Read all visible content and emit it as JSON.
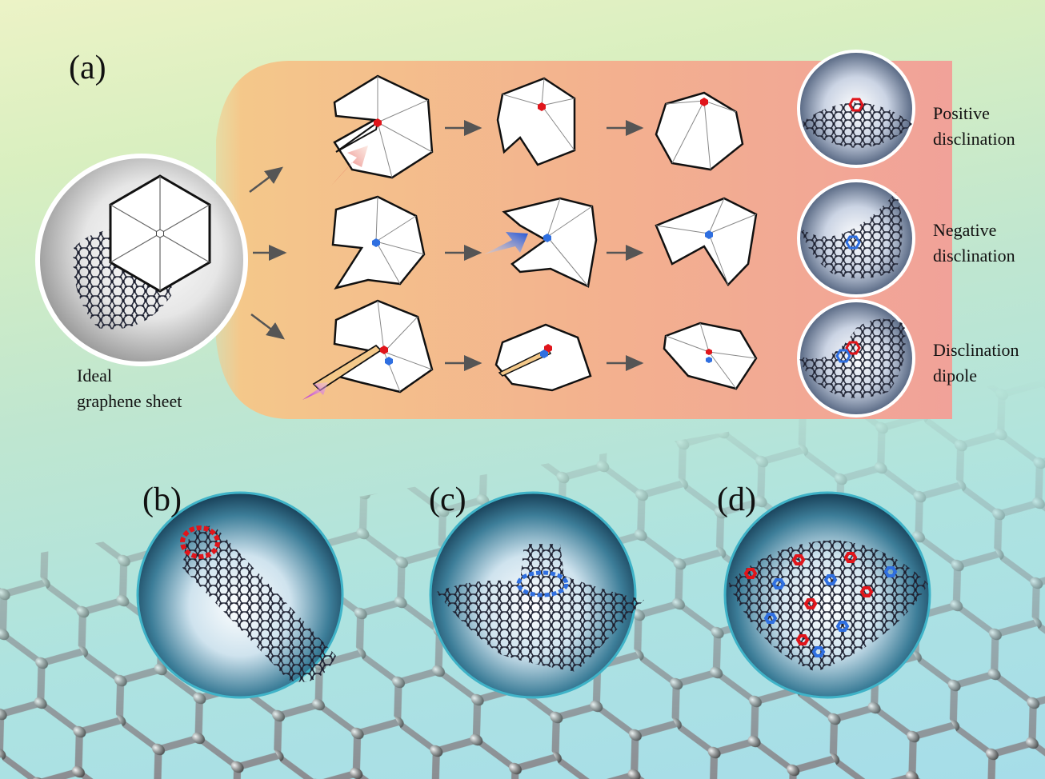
{
  "labels": {
    "panel_a": "(a)",
    "panel_b": "(b)",
    "panel_c": "(c)",
    "panel_d": "(d)"
  },
  "captions": {
    "ideal_line1": "Ideal",
    "ideal_line2": "graphene sheet",
    "positive_line1": "Positive",
    "positive_line2": "disclination",
    "negative_line1": "Negative",
    "negative_line2": "disclination",
    "dipole_line1": "Disclination",
    "dipole_line2": "dipole"
  },
  "icons": [
    "graphene-sheet-icon",
    "hexagon-paper-model-icon",
    "arrow-icon",
    "nanotube-icon",
    "cone-icon",
    "sphere-icon"
  ],
  "colors": {
    "positive_defect": "#e0151b",
    "negative_defect": "#2f6fe0",
    "atom": "#1b1e2e",
    "lattice": "#8d8f93",
    "band_start": "#f4c98a",
    "band_end": "#f1a299"
  }
}
